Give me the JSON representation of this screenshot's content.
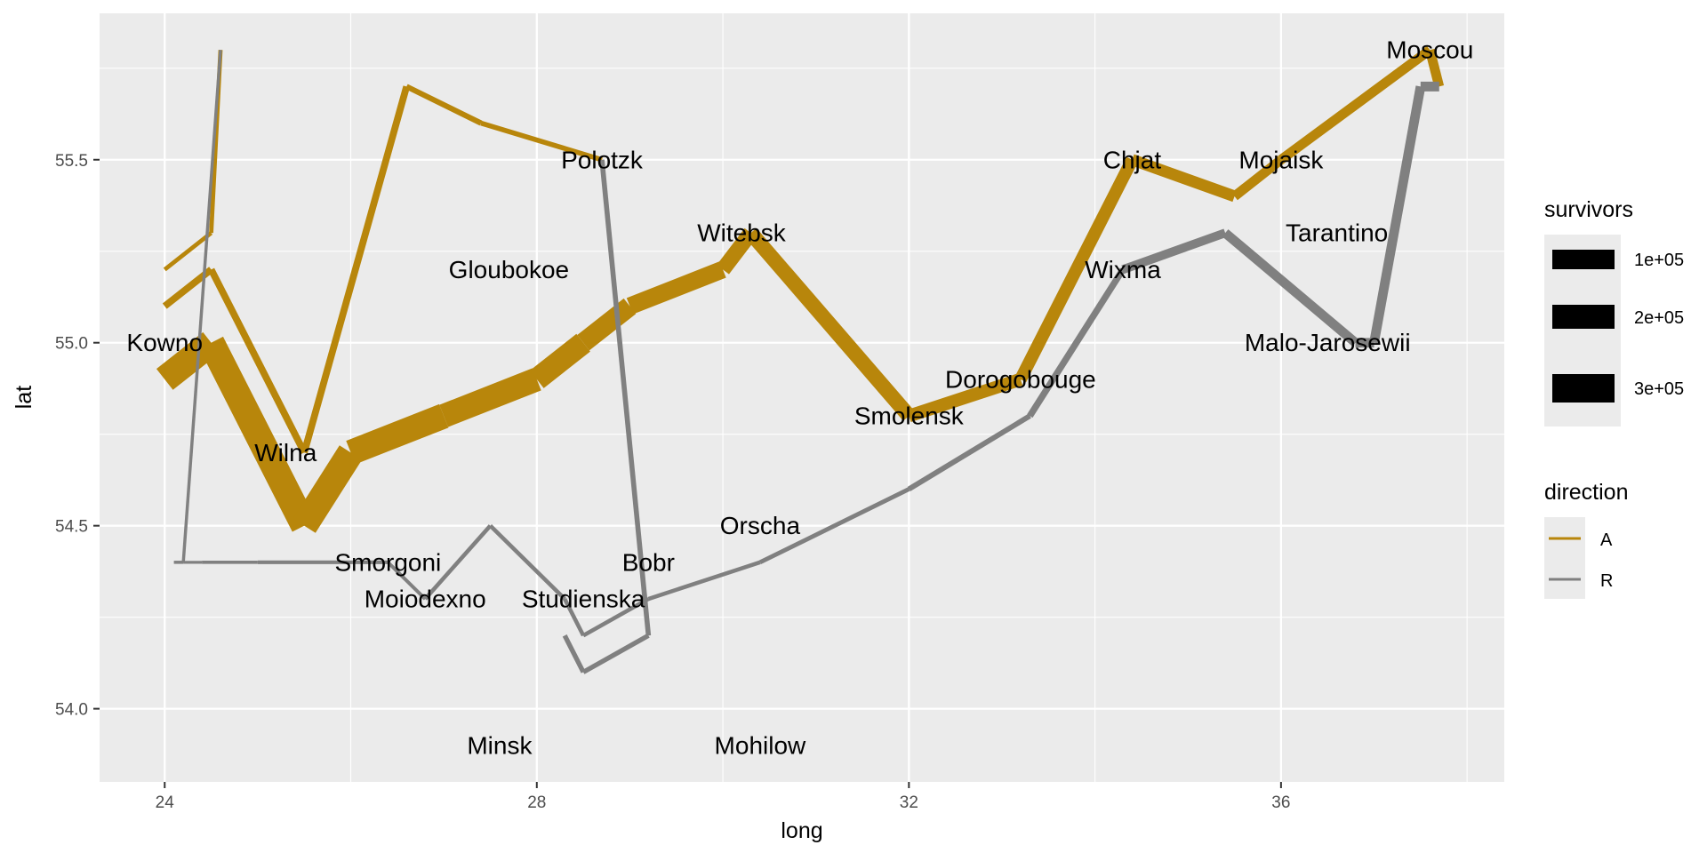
{
  "chart_data": {
    "type": "line",
    "xlabel": "long",
    "ylabel": "lat",
    "xlim": [
      23.3,
      38.4
    ],
    "ylim": [
      53.8,
      55.9
    ],
    "x_ticks": [
      24,
      28,
      32,
      36
    ],
    "y_ticks": [
      54.0,
      54.5,
      55.0,
      55.5
    ],
    "x_tick_labels": [
      "24",
      "28",
      "32",
      "36"
    ],
    "y_tick_labels": [
      "54.0",
      "54.5",
      "55.0",
      "55.5"
    ],
    "grid": true,
    "legend_position": "right",
    "colors": {
      "A": "#b8860b",
      "R": "#808080",
      "panel": "#ebebeb",
      "grid_major": "#ffffff"
    },
    "legend": {
      "survivors_title": "survivors",
      "survivors_items": [
        "1e+05",
        "2e+05",
        "3e+05"
      ],
      "direction_title": "direction",
      "direction_items": [
        "A",
        "R"
      ]
    },
    "paths": [
      {
        "direction": "A",
        "points": [
          {
            "long": 24.0,
            "lat": 54.9,
            "survivors": 340000
          },
          {
            "long": 24.5,
            "lat": 55.0,
            "survivors": 340000
          },
          {
            "long": 25.5,
            "lat": 54.5,
            "survivors": 340000
          },
          {
            "long": 26.0,
            "lat": 54.7,
            "survivors": 320000
          },
          {
            "long": 27.0,
            "lat": 54.8,
            "survivors": 300000
          },
          {
            "long": 28.0,
            "lat": 54.9,
            "survivors": 280000
          },
          {
            "long": 28.5,
            "lat": 55.0,
            "survivors": 240000
          },
          {
            "long": 29.0,
            "lat": 55.1,
            "survivors": 210000
          },
          {
            "long": 30.0,
            "lat": 55.2,
            "survivors": 180000
          },
          {
            "long": 30.3,
            "lat": 55.3,
            "survivors": 175000
          },
          {
            "long": 32.0,
            "lat": 54.8,
            "survivors": 145000
          },
          {
            "long": 33.2,
            "lat": 54.9,
            "survivors": 140000
          },
          {
            "long": 34.4,
            "lat": 55.5,
            "survivors": 127100
          },
          {
            "long": 35.5,
            "lat": 55.4,
            "survivors": 100000
          },
          {
            "long": 36.0,
            "lat": 55.5,
            "survivors": 100000
          },
          {
            "long": 37.6,
            "lat": 55.8,
            "survivors": 100000
          },
          {
            "long": 37.7,
            "lat": 55.7,
            "survivors": 100000
          }
        ]
      },
      {
        "direction": "R",
        "points": [
          {
            "long": 37.7,
            "lat": 55.7,
            "survivors": 100000
          },
          {
            "long": 37.5,
            "lat": 55.7,
            "survivors": 98000
          },
          {
            "long": 37.0,
            "lat": 55.0,
            "survivors": 97000
          },
          {
            "long": 36.8,
            "lat": 55.0,
            "survivors": 96000
          },
          {
            "long": 35.4,
            "lat": 55.3,
            "survivors": 87000
          },
          {
            "long": 34.3,
            "lat": 55.2,
            "survivors": 55000
          },
          {
            "long": 33.3,
            "lat": 54.8,
            "survivors": 37000
          },
          {
            "long": 32.0,
            "lat": 54.6,
            "survivors": 24000
          },
          {
            "long": 30.4,
            "lat": 54.4,
            "survivors": 20000
          },
          {
            "long": 29.2,
            "lat": 54.3,
            "survivors": 20000
          },
          {
            "long": 28.5,
            "lat": 54.2,
            "survivors": 20000
          },
          {
            "long": 28.3,
            "lat": 54.3,
            "survivors": 20000
          },
          {
            "long": 27.5,
            "lat": 54.5,
            "survivors": 20000
          },
          {
            "long": 26.8,
            "lat": 54.3,
            "survivors": 12000
          },
          {
            "long": 26.4,
            "lat": 54.4,
            "survivors": 14000
          },
          {
            "long": 25.0,
            "lat": 54.4,
            "survivors": 8000
          },
          {
            "long": 24.4,
            "lat": 54.4,
            "survivors": 4000
          },
          {
            "long": 24.2,
            "lat": 54.4,
            "survivors": 4000
          },
          {
            "long": 24.1,
            "lat": 54.4,
            "survivors": 4000
          }
        ]
      },
      {
        "direction": "A",
        "points": [
          {
            "long": 24.0,
            "lat": 55.1,
            "survivors": 60000
          },
          {
            "long": 24.5,
            "lat": 55.2,
            "survivors": 60000
          },
          {
            "long": 25.5,
            "lat": 54.7,
            "survivors": 60000
          },
          {
            "long": 26.6,
            "lat": 55.7,
            "survivors": 40000
          },
          {
            "long": 27.4,
            "lat": 55.6,
            "survivors": 33000
          },
          {
            "long": 28.7,
            "lat": 55.5,
            "survivors": 33000
          }
        ]
      },
      {
        "direction": "R",
        "points": [
          {
            "long": 28.7,
            "lat": 55.5,
            "survivors": 33000
          },
          {
            "long": 29.2,
            "lat": 54.2,
            "survivors": 30000
          },
          {
            "long": 28.5,
            "lat": 54.1,
            "survivors": 30000
          },
          {
            "long": 28.3,
            "lat": 54.2,
            "survivors": 28000
          }
        ]
      },
      {
        "direction": "A",
        "points": [
          {
            "long": 24.0,
            "lat": 55.2,
            "survivors": 22000
          },
          {
            "long": 24.5,
            "lat": 55.3,
            "survivors": 22000
          },
          {
            "long": 24.6,
            "lat": 55.8,
            "survivors": 6000
          }
        ]
      },
      {
        "direction": "R",
        "points": [
          {
            "long": 24.6,
            "lat": 55.8,
            "survivors": 6000
          },
          {
            "long": 24.2,
            "lat": 54.4,
            "survivors": 6000
          },
          {
            "long": 24.1,
            "lat": 54.4,
            "survivors": 6000
          }
        ]
      }
    ],
    "cities": [
      {
        "name": "Kowno",
        "long": 24.0,
        "lat": 55.0
      },
      {
        "name": "Wilna",
        "long": 25.3,
        "lat": 54.7
      },
      {
        "name": "Smorgoni",
        "long": 26.4,
        "lat": 54.4
      },
      {
        "name": "Moiodexno",
        "long": 26.8,
        "lat": 54.3
      },
      {
        "name": "Gloubokoe",
        "long": 27.7,
        "lat": 55.2
      },
      {
        "name": "Minsk",
        "long": 27.6,
        "lat": 53.9
      },
      {
        "name": "Studienska",
        "long": 28.5,
        "lat": 54.3
      },
      {
        "name": "Polotzk",
        "long": 28.7,
        "lat": 55.5
      },
      {
        "name": "Bobr",
        "long": 29.2,
        "lat": 54.4
      },
      {
        "name": "Witebsk",
        "long": 30.2,
        "lat": 55.3
      },
      {
        "name": "Orscha",
        "long": 30.4,
        "lat": 54.5
      },
      {
        "name": "Mohilow",
        "long": 30.4,
        "lat": 53.9
      },
      {
        "name": "Smolensk",
        "long": 32.0,
        "lat": 54.8
      },
      {
        "name": "Dorogobouge",
        "long": 33.2,
        "lat": 54.9
      },
      {
        "name": "Wixma",
        "long": 34.3,
        "lat": 55.2
      },
      {
        "name": "Chjat",
        "long": 34.4,
        "lat": 55.5
      },
      {
        "name": "Mojaisk",
        "long": 36.0,
        "lat": 55.5
      },
      {
        "name": "Moscou",
        "long": 37.6,
        "lat": 55.8
      },
      {
        "name": "Tarantino",
        "long": 36.6,
        "lat": 55.3
      },
      {
        "name": "Malo-Jarosewii",
        "long": 36.5,
        "lat": 55.0
      }
    ]
  }
}
